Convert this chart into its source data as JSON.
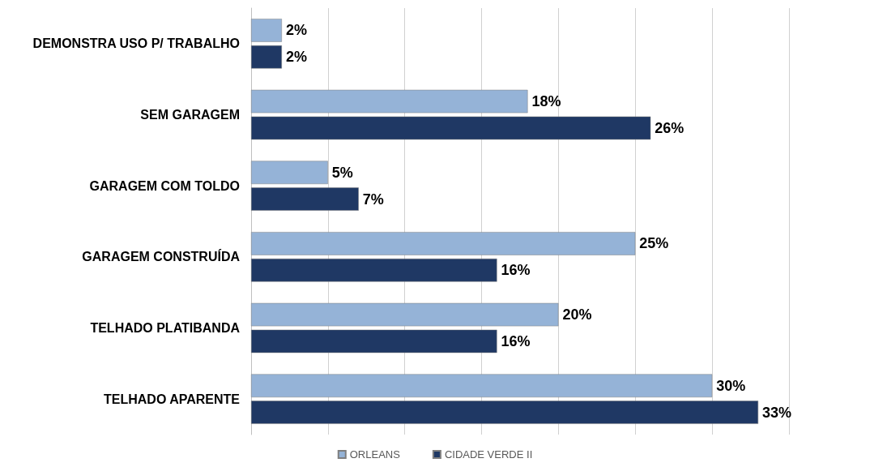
{
  "chart_data": {
    "type": "bar",
    "orientation": "horizontal",
    "categories": [
      "DEMONSTRA USO P/ TRABALHO",
      "SEM GARAGEM",
      "GARAGEM COM TOLDO",
      "GARAGEM CONSTRUÍDA",
      "TELHADO PLATIBANDA",
      "TELHADO APARENTE"
    ],
    "series": [
      {
        "name": "ORLEANS",
        "color": "#95b3d7",
        "values": [
          2,
          18,
          5,
          25,
          20,
          30
        ],
        "value_labels": [
          "2%",
          "18%",
          "5%",
          "25%",
          "20%",
          "30%"
        ]
      },
      {
        "name": "CIDADE VERDE II",
        "color": "#1f3864",
        "values": [
          2,
          26,
          7,
          16,
          16,
          33
        ],
        "value_labels": [
          "2%",
          "26%",
          "7%",
          "16%",
          "16%",
          "33%"
        ]
      }
    ],
    "xlim": [
      0,
      35
    ],
    "xticks": [
      {
        "value": 0,
        "label": null
      },
      {
        "value": 5,
        "label": null
      },
      {
        "value": 10,
        "label": null
      },
      {
        "value": 15,
        "label": null
      },
      {
        "value": 20,
        "label": null
      },
      {
        "value": 25,
        "label": null
      },
      {
        "value": 30,
        "label": null
      },
      {
        "value": 35,
        "label": null
      }
    ],
    "tick_labels": "y",
    "grid": "x",
    "legend": "bottom"
  }
}
